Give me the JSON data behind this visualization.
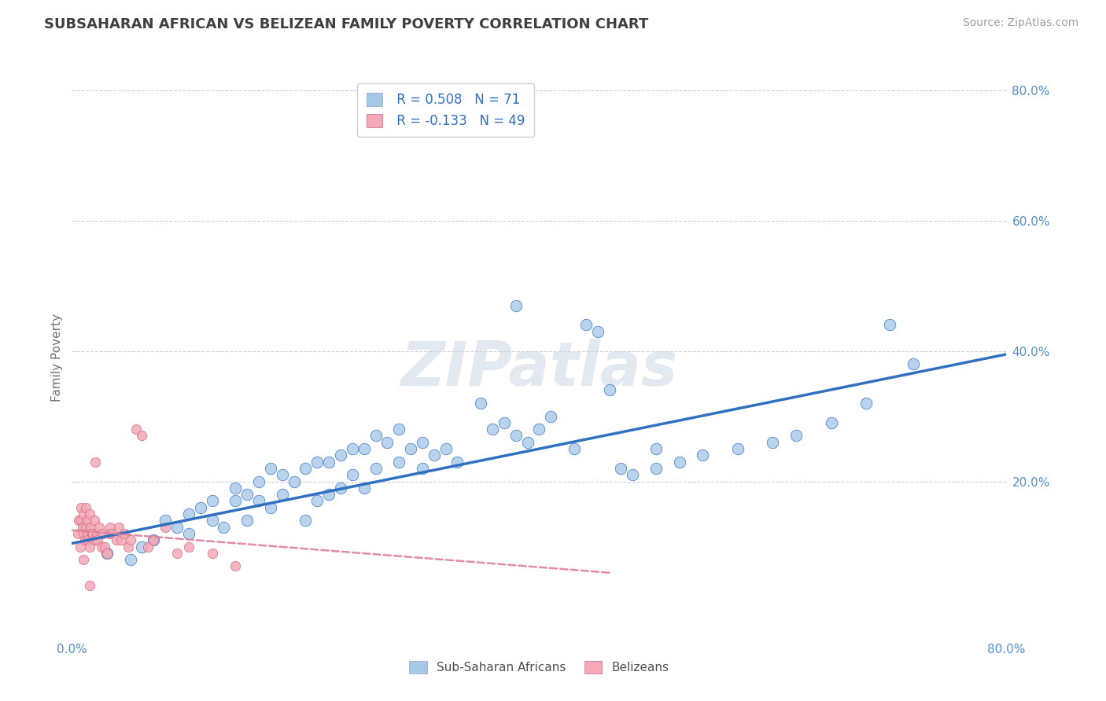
{
  "title": "SUBSAHARAN AFRICAN VS BELIZEAN FAMILY POVERTY CORRELATION CHART",
  "source": "Source: ZipAtlas.com",
  "legend_label1": "Sub-Saharan Africans",
  "legend_label2": "Belizeans",
  "r1": 0.508,
  "n1": 71,
  "r2": -0.133,
  "n2": 49,
  "color_blue": "#A8C8E8",
  "color_pink": "#F4A8B8",
  "line_blue": "#3070C0",
  "line_pink": "#E08098",
  "bg_color": "#FFFFFF",
  "grid_color": "#C8D0DC",
  "title_color": "#404040",
  "axis_label_color": "#5090D0",
  "ylabel": "Family Poverty",
  "watermark": "ZIPatlas",
  "xmin": 0.0,
  "xmax": 0.8,
  "ymin": -0.04,
  "ymax": 0.82,
  "blue_line_x0": 0.0,
  "blue_line_y0": 0.105,
  "blue_line_x1": 0.8,
  "blue_line_y1": 0.395,
  "pink_line_x0": 0.0,
  "pink_line_y0": 0.125,
  "pink_line_x1": 0.46,
  "pink_line_y1": 0.06,
  "blue_scatter_x": [
    0.03,
    0.05,
    0.06,
    0.07,
    0.08,
    0.09,
    0.1,
    0.1,
    0.11,
    0.12,
    0.12,
    0.13,
    0.14,
    0.14,
    0.15,
    0.15,
    0.16,
    0.16,
    0.17,
    0.17,
    0.18,
    0.18,
    0.19,
    0.2,
    0.2,
    0.21,
    0.21,
    0.22,
    0.22,
    0.23,
    0.23,
    0.24,
    0.24,
    0.25,
    0.25,
    0.26,
    0.26,
    0.27,
    0.28,
    0.28,
    0.29,
    0.3,
    0.3,
    0.31,
    0.32,
    0.33,
    0.35,
    0.36,
    0.37,
    0.38,
    0.39,
    0.4,
    0.41,
    0.43,
    0.44,
    0.46,
    0.47,
    0.48,
    0.5,
    0.52,
    0.54,
    0.57,
    0.6,
    0.62,
    0.65,
    0.68,
    0.7,
    0.72,
    0.45,
    0.5,
    0.38
  ],
  "blue_scatter_y": [
    0.09,
    0.08,
    0.1,
    0.11,
    0.14,
    0.13,
    0.12,
    0.15,
    0.16,
    0.14,
    0.17,
    0.13,
    0.17,
    0.19,
    0.18,
    0.14,
    0.17,
    0.2,
    0.16,
    0.22,
    0.18,
    0.21,
    0.2,
    0.22,
    0.14,
    0.23,
    0.17,
    0.23,
    0.18,
    0.24,
    0.19,
    0.25,
    0.21,
    0.25,
    0.19,
    0.27,
    0.22,
    0.26,
    0.28,
    0.23,
    0.25,
    0.26,
    0.22,
    0.24,
    0.25,
    0.23,
    0.32,
    0.28,
    0.29,
    0.27,
    0.26,
    0.28,
    0.3,
    0.25,
    0.44,
    0.34,
    0.22,
    0.21,
    0.22,
    0.23,
    0.24,
    0.25,
    0.26,
    0.27,
    0.29,
    0.32,
    0.44,
    0.38,
    0.43,
    0.25,
    0.47
  ],
  "pink_scatter_x": [
    0.005,
    0.006,
    0.007,
    0.008,
    0.008,
    0.009,
    0.01,
    0.01,
    0.011,
    0.012,
    0.012,
    0.013,
    0.013,
    0.014,
    0.015,
    0.015,
    0.016,
    0.017,
    0.018,
    0.019,
    0.02,
    0.02,
    0.021,
    0.022,
    0.023,
    0.025,
    0.026,
    0.028,
    0.03,
    0.032,
    0.033,
    0.035,
    0.038,
    0.04,
    0.042,
    0.045,
    0.048,
    0.05,
    0.055,
    0.06,
    0.065,
    0.07,
    0.08,
    0.09,
    0.1,
    0.12,
    0.14,
    0.01,
    0.015
  ],
  "pink_scatter_y": [
    0.12,
    0.14,
    0.1,
    0.14,
    0.16,
    0.13,
    0.12,
    0.15,
    0.11,
    0.13,
    0.16,
    0.12,
    0.14,
    0.11,
    0.15,
    0.1,
    0.13,
    0.12,
    0.12,
    0.14,
    0.11,
    0.23,
    0.12,
    0.11,
    0.13,
    0.1,
    0.12,
    0.1,
    0.09,
    0.12,
    0.13,
    0.12,
    0.11,
    0.13,
    0.11,
    0.12,
    0.1,
    0.11,
    0.28,
    0.27,
    0.1,
    0.11,
    0.13,
    0.09,
    0.1,
    0.09,
    0.07,
    0.08,
    0.04
  ],
  "yticks": [
    0.2,
    0.4,
    0.6,
    0.8
  ],
  "ytick_labels": [
    "20.0%",
    "40.0%",
    "60.0%",
    "80.0%"
  ]
}
